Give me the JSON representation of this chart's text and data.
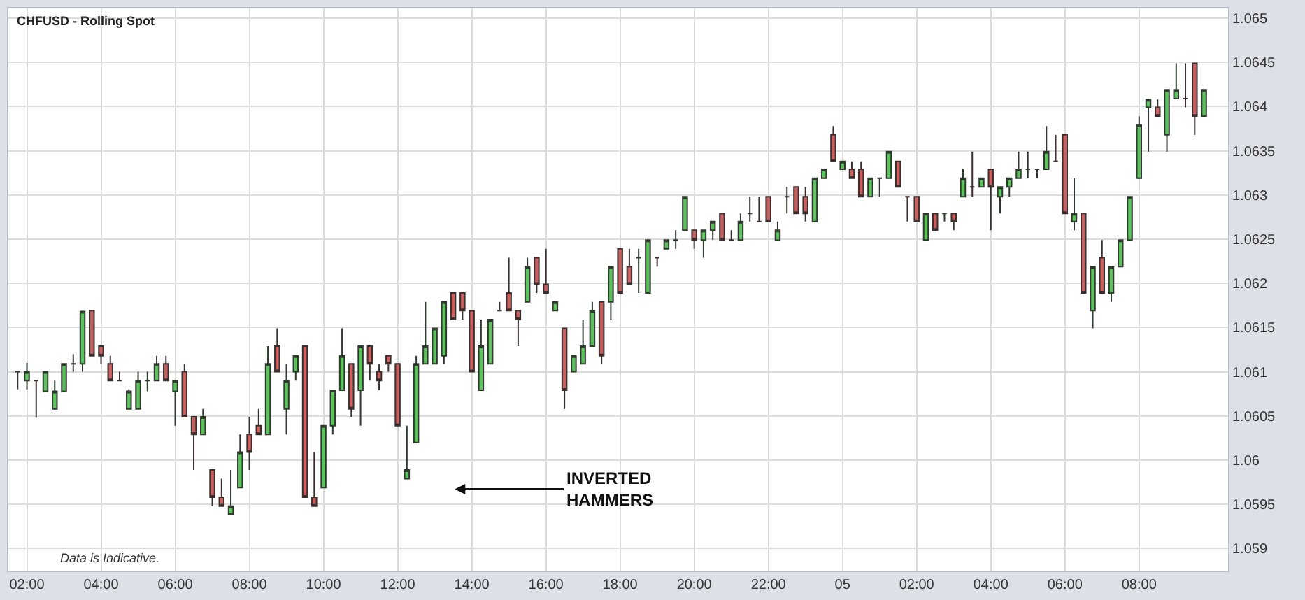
{
  "chart_data": {
    "type": "candlestick",
    "title": "CHFUSD - Rolling Spot",
    "annotations": [
      "Data is Indicative.",
      "INVERTED HAMMERS"
    ],
    "x": [
      "--01-04T01:45",
      "--01-04T02:00",
      "--01-04T02:15",
      "--01-04T02:30",
      "--01-04T02:45",
      "--01-04T03:00",
      "--01-04T03:15",
      "--01-04T03:30",
      "--01-04T03:45",
      "--01-04T04:00",
      "--01-04T04:15",
      "--01-04T04:30",
      "--01-04T04:45",
      "--01-04T05:00",
      "--01-04T05:15",
      "--01-04T05:30",
      "--01-04T05:45",
      "--01-04T06:00",
      "--01-04T06:15",
      "--01-04T06:30",
      "--01-04T06:45",
      "--01-04T07:00",
      "--01-04T07:15",
      "--01-04T07:30",
      "--01-04T07:45",
      "--01-04T08:00",
      "--01-04T08:15",
      "--01-04T08:30",
      "--01-04T08:45",
      "--01-04T09:00",
      "--01-04T09:15",
      "--01-04T09:30",
      "--01-04T09:45",
      "--01-04T10:00",
      "--01-04T10:15",
      "--01-04T10:30",
      "--01-04T10:45",
      "--01-04T11:00",
      "--01-04T11:15",
      "--01-04T11:30",
      "--01-04T11:45",
      "--01-04T12:00",
      "--01-04T12:15",
      "--01-04T12:30",
      "--01-04T12:45",
      "--01-04T13:00",
      "--01-04T13:15",
      "--01-04T13:30",
      "--01-04T13:45",
      "--01-04T14:00",
      "--01-04T14:15",
      "--01-04T14:30",
      "--01-04T14:45",
      "--01-04T15:00",
      "--01-04T15:15",
      "--01-04T15:30",
      "--01-04T15:45",
      "--01-04T16:00",
      "--01-04T16:15",
      "--01-04T16:30",
      "--01-04T16:45",
      "--01-04T17:00",
      "--01-04T17:15",
      "--01-04T17:30",
      "--01-04T17:45",
      "--01-04T18:00",
      "--01-04T18:15",
      "--01-04T18:30",
      "--01-04T18:45",
      "--01-04T19:00",
      "--01-04T19:15",
      "--01-04T19:30",
      "--01-04T19:45",
      "--01-04T20:00",
      "--01-04T20:15",
      "--01-04T20:30",
      "--01-04T20:45",
      "--01-04T21:00",
      "--01-04T21:15",
      "--01-04T21:30",
      "--01-04T21:45",
      "--01-04T22:00",
      "--01-04T22:15",
      "--01-04T22:30",
      "--01-04T22:45",
      "--01-04T23:00",
      "--01-04T23:15",
      "--01-04T23:30",
      "--01-04T23:45",
      "--01-05T00:00",
      "--01-05T00:15",
      "--01-05T00:30",
      "--01-05T00:45",
      "--01-05T01:00",
      "--01-05T01:15",
      "--01-05T01:30",
      "--01-05T01:45",
      "--01-05T02:00",
      "--01-05T02:15",
      "--01-05T02:30",
      "--01-05T02:45",
      "--01-05T03:00",
      "--01-05T03:15",
      "--01-05T03:30",
      "--01-05T03:45",
      "--01-05T04:00",
      "--01-05T04:15",
      "--01-05T04:30",
      "--01-05T04:45",
      "--01-05T05:00",
      "--01-05T05:15",
      "--01-05T05:30",
      "--01-05T05:45",
      "--01-05T06:00",
      "--01-05T06:15",
      "--01-05T06:30",
      "--01-05T06:45",
      "--01-05T07:00",
      "--01-05T07:15",
      "--01-05T07:30",
      "--01-05T07:45",
      "--01-05T08:00",
      "--01-05T08:15",
      "--01-05T08:30",
      "--01-05T08:45",
      "--01-05T09:00",
      "--01-05T09:15",
      "--01-05T09:30",
      "--01-05T09:45"
    ],
    "ohlc": [
      [
        1.061,
        1.061,
        1.0608,
        1.061
      ],
      [
        1.0609,
        1.0611,
        1.0608,
        1.061
      ],
      [
        1.0609,
        1.0609,
        1.06048,
        1.0609
      ],
      [
        1.06078,
        1.061,
        1.06078,
        1.061
      ],
      [
        1.06058,
        1.0609,
        1.06058,
        1.06078
      ],
      [
        1.06078,
        1.06109,
        1.06078,
        1.06109
      ],
      [
        1.06109,
        1.0612,
        1.061,
        1.06109
      ],
      [
        1.06109,
        1.06169,
        1.061,
        1.06168
      ],
      [
        1.06169,
        1.06169,
        1.06118,
        1.06118
      ],
      [
        1.06129,
        1.06129,
        1.06109,
        1.06118
      ],
      [
        1.06109,
        1.06118,
        1.0609,
        1.0609
      ],
      [
        1.0609,
        1.061,
        1.0609,
        1.0609
      ],
      [
        1.06058,
        1.0608,
        1.06058,
        1.06078
      ],
      [
        1.06058,
        1.061,
        1.06058,
        1.0609
      ],
      [
        1.0609,
        1.061,
        1.06078,
        1.0609
      ],
      [
        1.0609,
        1.06118,
        1.0609,
        1.06109
      ],
      [
        1.06109,
        1.06118,
        1.0609,
        1.0609
      ],
      [
        1.06078,
        1.0609,
        1.06039,
        1.0609
      ],
      [
        1.061,
        1.06109,
        1.06049,
        1.06049
      ],
      [
        1.06049,
        1.06049,
        1.05989,
        1.06029
      ],
      [
        1.06029,
        1.06058,
        1.06029,
        1.06049
      ],
      [
        1.05989,
        1.05989,
        1.05948,
        1.05958
      ],
      [
        1.05958,
        1.05979,
        1.05948,
        1.05948
      ],
      [
        1.05939,
        1.05989,
        1.05939,
        1.05948
      ],
      [
        1.05969,
        1.06029,
        1.05969,
        1.06009
      ],
      [
        1.06029,
        1.06049,
        1.05989,
        1.06009
      ],
      [
        1.06039,
        1.06058,
        1.06029,
        1.06029
      ],
      [
        1.06029,
        1.06129,
        1.06029,
        1.06109
      ],
      [
        1.06129,
        1.06149,
        1.061,
        1.061
      ],
      [
        1.06058,
        1.06109,
        1.06029,
        1.0609
      ],
      [
        1.061,
        1.06118,
        1.0609,
        1.06118
      ],
      [
        1.06129,
        1.06129,
        1.05958,
        1.05958
      ],
      [
        1.05958,
        1.06009,
        1.05948,
        1.05948
      ],
      [
        1.05969,
        1.06039,
        1.05969,
        1.06039
      ],
      [
        1.06039,
        1.06079,
        1.06029,
        1.06079
      ],
      [
        1.06079,
        1.06149,
        1.06079,
        1.06118
      ],
      [
        1.06109,
        1.06109,
        1.06049,
        1.06058
      ],
      [
        1.06079,
        1.06129,
        1.06039,
        1.06129
      ],
      [
        1.06129,
        1.06129,
        1.0609,
        1.06109
      ],
      [
        1.061,
        1.06109,
        1.06079,
        1.0609
      ],
      [
        1.06118,
        1.06118,
        1.061,
        1.06109
      ],
      [
        1.06109,
        1.06109,
        1.06039,
        1.06039
      ],
      [
        1.05979,
        1.06039,
        1.05979,
        1.05989
      ],
      [
        1.0602,
        1.06118,
        1.0602,
        1.06109
      ],
      [
        1.06109,
        1.06179,
        1.06109,
        1.06129
      ],
      [
        1.06109,
        1.06149,
        1.06109,
        1.06149
      ],
      [
        1.06118,
        1.06179,
        1.06109,
        1.06179
      ],
      [
        1.06189,
        1.06189,
        1.06159,
        1.06159
      ],
      [
        1.06189,
        1.06189,
        1.06159,
        1.06169
      ],
      [
        1.06169,
        1.06169,
        1.061,
        1.061
      ],
      [
        1.06079,
        1.06159,
        1.06079,
        1.06129
      ],
      [
        1.06109,
        1.06159,
        1.06109,
        1.06159
      ],
      [
        1.06169,
        1.06179,
        1.06169,
        1.06169
      ],
      [
        1.06189,
        1.06229,
        1.06169,
        1.06169
      ],
      [
        1.06169,
        1.06169,
        1.06129,
        1.06159
      ],
      [
        1.06179,
        1.06229,
        1.06179,
        1.06219
      ],
      [
        1.06229,
        1.06229,
        1.06189,
        1.06199
      ],
      [
        1.06199,
        1.06239,
        1.06189,
        1.06189
      ],
      [
        1.06169,
        1.06179,
        1.06169,
        1.06179
      ],
      [
        1.06149,
        1.06149,
        1.06058,
        1.06079
      ],
      [
        1.061,
        1.06118,
        1.061,
        1.06118
      ],
      [
        1.06109,
        1.06159,
        1.06109,
        1.06129
      ],
      [
        1.06129,
        1.06179,
        1.06129,
        1.06169
      ],
      [
        1.06179,
        1.06179,
        1.06109,
        1.06118
      ],
      [
        1.06179,
        1.06219,
        1.06159,
        1.06219
      ],
      [
        1.06239,
        1.06239,
        1.06189,
        1.06189
      ],
      [
        1.06219,
        1.06239,
        1.06199,
        1.06199
      ],
      [
        1.06229,
        1.06239,
        1.06189,
        1.06229
      ],
      [
        1.06189,
        1.06249,
        1.06189,
        1.06249
      ],
      [
        1.06229,
        1.06229,
        1.06219,
        1.06229
      ],
      [
        1.06239,
        1.06249,
        1.06239,
        1.06249
      ],
      [
        1.06249,
        1.0626,
        1.06239,
        1.06249
      ],
      [
        1.0626,
        1.06298,
        1.0626,
        1.06298
      ],
      [
        1.0626,
        1.0626,
        1.06239,
        1.06249
      ],
      [
        1.06249,
        1.0626,
        1.06229,
        1.0626
      ],
      [
        1.0626,
        1.0627,
        1.06249,
        1.0627
      ],
      [
        1.06279,
        1.06279,
        1.06249,
        1.06249
      ],
      [
        1.06249,
        1.0626,
        1.06249,
        1.06249
      ],
      [
        1.06249,
        1.06279,
        1.06249,
        1.0627
      ],
      [
        1.06279,
        1.06298,
        1.0627,
        1.06279
      ],
      [
        1.0627,
        1.06298,
        1.0627,
        1.0627
      ],
      [
        1.06298,
        1.06298,
        1.0627,
        1.0627
      ],
      [
        1.06249,
        1.0627,
        1.06249,
        1.0626
      ],
      [
        1.06298,
        1.06309,
        1.06279,
        1.06298
      ],
      [
        1.06309,
        1.06309,
        1.06279,
        1.06279
      ],
      [
        1.06298,
        1.06309,
        1.0627,
        1.06279
      ],
      [
        1.0627,
        1.06319,
        1.0627,
        1.06319
      ],
      [
        1.06319,
        1.06329,
        1.06319,
        1.06329
      ],
      [
        1.06368,
        1.06378,
        1.06338,
        1.06338
      ],
      [
        1.06329,
        1.06338,
        1.06329,
        1.06338
      ],
      [
        1.06329,
        1.06338,
        1.06319,
        1.06319
      ],
      [
        1.06329,
        1.06338,
        1.06298,
        1.06298
      ],
      [
        1.06298,
        1.06319,
        1.06298,
        1.06319
      ],
      [
        1.06319,
        1.06319,
        1.06298,
        1.06319
      ],
      [
        1.06319,
        1.06349,
        1.06319,
        1.06349
      ],
      [
        1.06338,
        1.06338,
        1.06309,
        1.06309
      ],
      [
        1.06298,
        1.06298,
        1.0627,
        1.06298
      ],
      [
        1.06298,
        1.06298,
        1.0627,
        1.0627
      ],
      [
        1.06249,
        1.06279,
        1.06249,
        1.06279
      ],
      [
        1.06279,
        1.06279,
        1.0626,
        1.0626
      ],
      [
        1.06279,
        1.06279,
        1.0627,
        1.06279
      ],
      [
        1.06279,
        1.06279,
        1.0626,
        1.0627
      ],
      [
        1.06298,
        1.06329,
        1.06298,
        1.06319
      ],
      [
        1.06309,
        1.06349,
        1.06298,
        1.06309
      ],
      [
        1.06309,
        1.06319,
        1.06309,
        1.06319
      ],
      [
        1.06329,
        1.06329,
        1.0626,
        1.06309
      ],
      [
        1.06298,
        1.06309,
        1.06279,
        1.06309
      ],
      [
        1.06309,
        1.06319,
        1.06298,
        1.06319
      ],
      [
        1.06319,
        1.06349,
        1.06319,
        1.06329
      ],
      [
        1.06329,
        1.06349,
        1.06319,
        1.06329
      ],
      [
        1.06329,
        1.06329,
        1.06319,
        1.06329
      ],
      [
        1.06329,
        1.06378,
        1.06329,
        1.06349
      ],
      [
        1.06338,
        1.06368,
        1.06338,
        1.06338
      ],
      [
        1.06368,
        1.06368,
        1.06279,
        1.06279
      ],
      [
        1.0627,
        1.06319,
        1.0626,
        1.06279
      ],
      [
        1.06279,
        1.06279,
        1.06189,
        1.06189
      ],
      [
        1.06169,
        1.06219,
        1.06149,
        1.06219
      ],
      [
        1.06229,
        1.06249,
        1.06189,
        1.06189
      ],
      [
        1.06189,
        1.06219,
        1.06179,
        1.06219
      ],
      [
        1.06219,
        1.06249,
        1.06219,
        1.06249
      ],
      [
        1.06249,
        1.06298,
        1.06249,
        1.06298
      ],
      [
        1.06319,
        1.06389,
        1.06319,
        1.06379
      ],
      [
        1.06399,
        1.06408,
        1.06349,
        1.06408
      ],
      [
        1.06399,
        1.06408,
        1.06389,
        1.06389
      ],
      [
        1.06368,
        1.06419,
        1.06349,
        1.06419
      ],
      [
        1.06409,
        1.06449,
        1.06409,
        1.06419
      ],
      [
        1.06409,
        1.06449,
        1.06399,
        1.06409
      ],
      [
        1.06449,
        1.06449,
        1.06368,
        1.06389
      ],
      [
        1.06389,
        1.06419,
        1.06389,
        1.06419
      ]
    ],
    "xlim": [
      "--01-04T01:30",
      "--01-05T10:24"
    ],
    "xticks": [
      {
        "value": "--01-04T02:00",
        "label": "02:00"
      },
      {
        "value": "--01-04T04:00",
        "label": "04:00"
      },
      {
        "value": "--01-04T06:00",
        "label": "06:00"
      },
      {
        "value": "--01-04T08:00",
        "label": "08:00"
      },
      {
        "value": "--01-04T10:00",
        "label": "10:00"
      },
      {
        "value": "--01-04T12:00",
        "label": "12:00"
      },
      {
        "value": "--01-04T14:00",
        "label": "14:00"
      },
      {
        "value": "--01-04T16:00",
        "label": "16:00"
      },
      {
        "value": "--01-04T18:00",
        "label": "18:00"
      },
      {
        "value": "--01-04T20:00",
        "label": "20:00"
      },
      {
        "value": "--01-04T22:00",
        "label": "22:00"
      },
      {
        "value": "--01-05",
        "label": "05"
      },
      {
        "value": "--01-05T02:00",
        "label": "02:00"
      },
      {
        "value": "--01-05T04:00",
        "label": "04:00"
      },
      {
        "value": "--01-05T06:00",
        "label": "06:00"
      },
      {
        "value": "--01-05T08:00",
        "label": "08:00"
      }
    ],
    "ylim": [
      1.05875,
      1.06511
    ],
    "yticks": [
      1.059,
      1.0595,
      1.06,
      1.0605,
      1.061,
      1.0615,
      1.062,
      1.0625,
      1.063,
      1.0635,
      1.064,
      1.0645,
      1.065
    ],
    "grid": true
  }
}
